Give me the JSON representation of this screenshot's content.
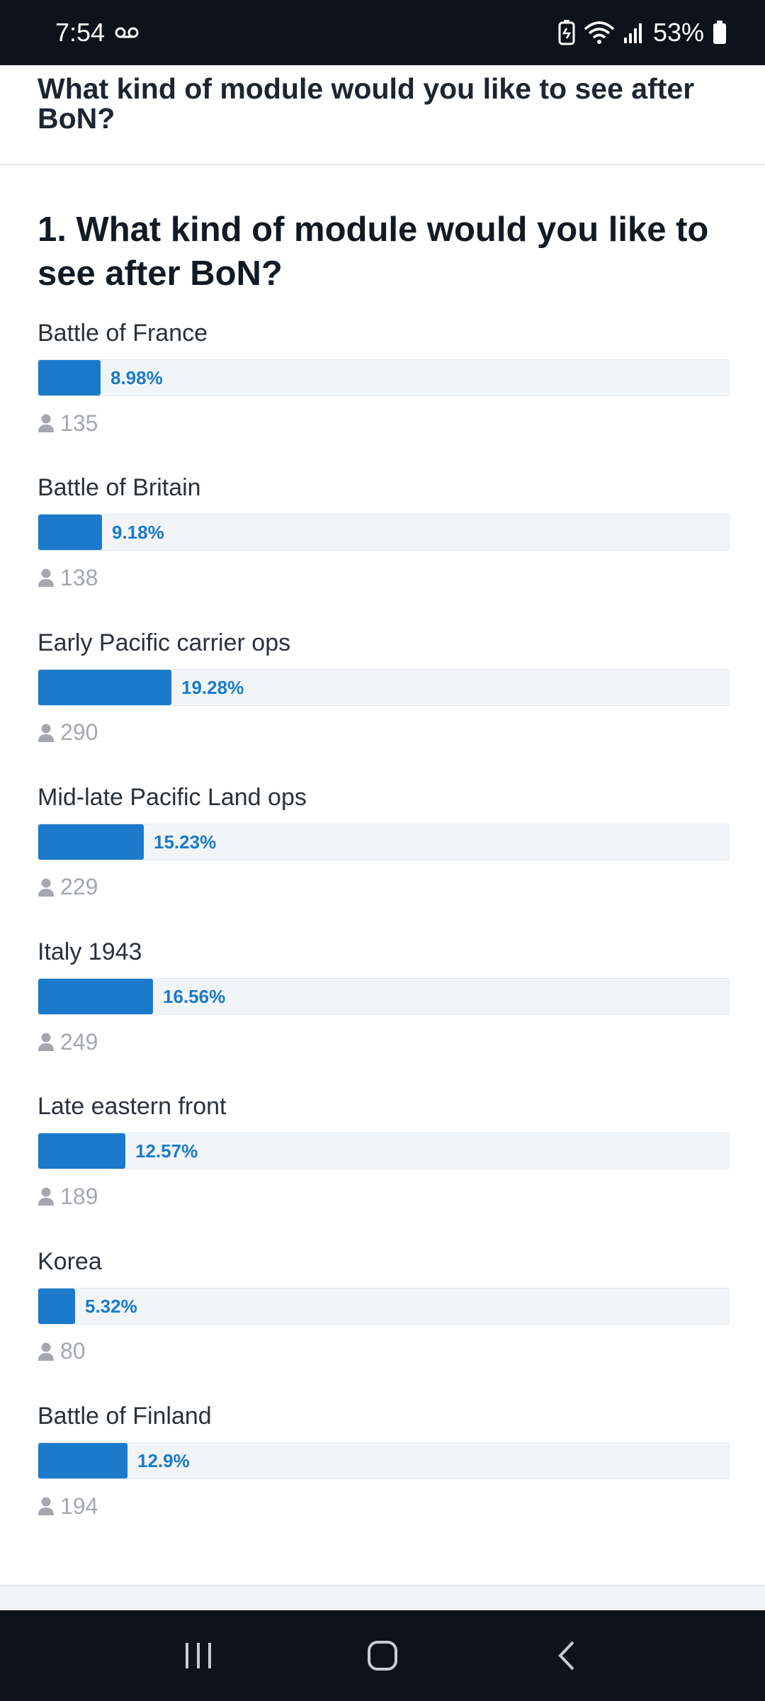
{
  "status_bar": {
    "time": "7:54",
    "battery_pct": "53%"
  },
  "header": {
    "title": "What kind of module would you like to see after BoN?"
  },
  "poll": {
    "question": "1. What kind of module would you like to see after BoN?",
    "options": [
      {
        "label": "Battle of France",
        "percent_text": "8.98%",
        "percent": 8.98,
        "votes": "135"
      },
      {
        "label": "Battle of Britain",
        "percent_text": "9.18%",
        "percent": 9.18,
        "votes": "138"
      },
      {
        "label": "Early Pacific carrier ops",
        "percent_text": "19.28%",
        "percent": 19.28,
        "votes": "290"
      },
      {
        "label": "Mid-late Pacific Land ops",
        "percent_text": "15.23%",
        "percent": 15.23,
        "votes": "229"
      },
      {
        "label": "Italy 1943",
        "percent_text": "16.56%",
        "percent": 16.56,
        "votes": "249"
      },
      {
        "label": "Late eastern front",
        "percent_text": "12.57%",
        "percent": 12.57,
        "votes": "189"
      },
      {
        "label": "Korea",
        "percent_text": "5.32%",
        "percent": 5.32,
        "votes": "80"
      },
      {
        "label": "Battle of Finland",
        "percent_text": "12.9%",
        "percent": 12.9,
        "votes": "194"
      }
    ]
  },
  "colors": {
    "accent": "#1b7acb",
    "status_bar_bg": "#0d131b"
  },
  "icons": {
    "voicemail": "voicemail-icon",
    "battery_saver": "battery-saver-icon",
    "wifi": "wifi-icon",
    "signal": "signal-icon",
    "battery": "battery-icon",
    "voter": "user-icon",
    "recents": "recents-icon",
    "home": "home-icon",
    "back": "back-icon"
  }
}
